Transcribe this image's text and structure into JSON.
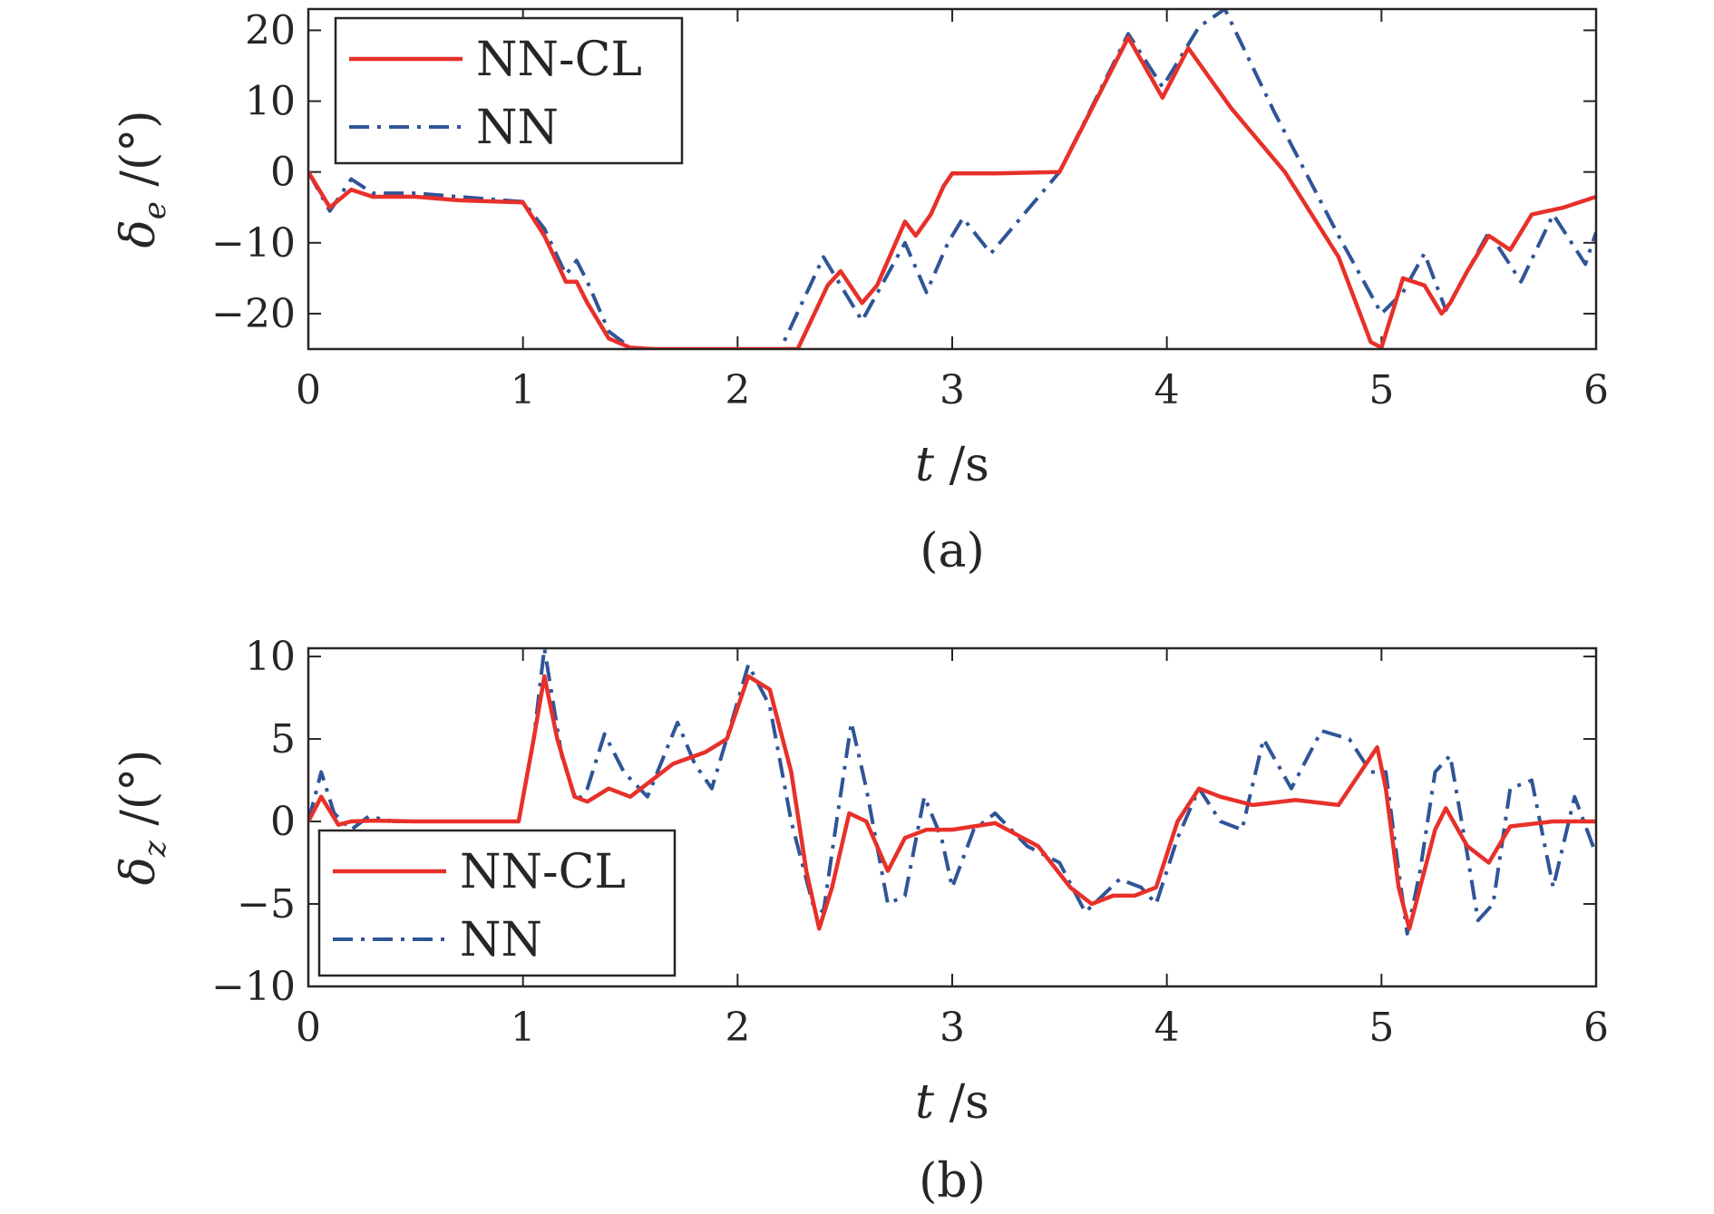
{
  "chart_data": [
    {
      "type": "line",
      "caption": "(a)",
      "ylabel_symbol": "δ",
      "ylabel_sub": "e",
      "ylabel_unit": " /(°)",
      "xlabel_symbol": "t",
      "xlabel_unit": " /s",
      "xlim": [
        0,
        6
      ],
      "ylim": [
        -25,
        23
      ],
      "xticks": [
        0,
        1,
        2,
        3,
        4,
        5,
        6
      ],
      "xtick_labels": [
        "0",
        "1",
        "2",
        "3",
        "4",
        "5",
        "6"
      ],
      "yticks": [
        -20,
        -10,
        0,
        10,
        20
      ],
      "ytick_labels": [
        "−20",
        "−10",
        "0",
        "10",
        "20"
      ],
      "legend_position": "top-left",
      "colors": {
        "NN-CL": "#e8302a",
        "NN": "#2f5597"
      },
      "series": [
        {
          "name": "NN-CL",
          "style": "solid",
          "x": [
            0,
            0.1,
            0.2,
            0.3,
            0.5,
            0.7,
            1.0,
            1.1,
            1.2,
            1.25,
            1.3,
            1.4,
            1.5,
            1.6,
            2.0,
            2.28,
            2.42,
            2.48,
            2.58,
            2.65,
            2.78,
            2.83,
            2.9,
            2.96,
            3.0,
            3.2,
            3.5,
            3.82,
            3.98,
            4.1,
            4.3,
            4.55,
            4.8,
            4.95,
            5.0,
            5.1,
            5.2,
            5.28,
            5.32,
            5.4,
            5.5,
            5.6,
            5.7,
            5.85,
            6.0
          ],
          "y": [
            0,
            -5,
            -2.5,
            -3.5,
            -3.5,
            -4,
            -4.3,
            -9,
            -15.5,
            -15.5,
            -18.5,
            -23.5,
            -24.8,
            -25,
            -25,
            -25,
            -16,
            -14,
            -18.5,
            -16,
            -7,
            -9,
            -6,
            -2,
            -0.2,
            -0.2,
            0,
            19,
            10.5,
            17.5,
            9,
            0,
            -12,
            -24,
            -24.8,
            -15,
            -16,
            -20,
            -18.5,
            -14,
            -9,
            -11,
            -6,
            -5,
            -3.5
          ]
        },
        {
          "name": "NN",
          "style": "dash-dot",
          "x": [
            0,
            0.1,
            0.2,
            0.3,
            0.5,
            0.7,
            1.0,
            1.1,
            1.2,
            1.25,
            1.3,
            1.4,
            1.5,
            1.6,
            2.0,
            2.2,
            2.4,
            2.58,
            2.78,
            2.88,
            2.98,
            3.05,
            3.18,
            3.5,
            3.82,
            3.98,
            4.15,
            4.27,
            4.5,
            4.8,
            5.0,
            5.1,
            5.2,
            5.3,
            5.5,
            5.65,
            5.8,
            5.95,
            6.0
          ],
          "y": [
            0,
            -5.5,
            -1,
            -3,
            -3,
            -3.5,
            -4.2,
            -8,
            -14.5,
            -12.5,
            -15.5,
            -22.5,
            -24.8,
            -25,
            -25,
            -25,
            -12,
            -21,
            -10,
            -17,
            -10,
            -6.5,
            -11.5,
            0,
            19.5,
            12,
            20.5,
            23,
            8.5,
            -9,
            -20,
            -17,
            -11.5,
            -19.5,
            -8.5,
            -15.5,
            -6,
            -13,
            -8.5
          ]
        }
      ]
    },
    {
      "type": "line",
      "caption": "(b)",
      "ylabel_symbol": "δ",
      "ylabel_sub": "z",
      "ylabel_unit": " /(°)",
      "xlabel_symbol": "t",
      "xlabel_unit": " /s",
      "xlim": [
        0,
        6
      ],
      "ylim": [
        -10,
        10.5
      ],
      "xticks": [
        0,
        1,
        2,
        3,
        4,
        5,
        6
      ],
      "xtick_labels": [
        "0",
        "1",
        "2",
        "3",
        "4",
        "5",
        "6"
      ],
      "yticks": [
        -10,
        -5,
        0,
        5,
        10
      ],
      "ytick_labels": [
        "−10",
        "−5",
        "0",
        "5",
        "10"
      ],
      "legend_position": "bottom-left",
      "colors": {
        "NN-CL": "#e8302a",
        "NN": "#2f5597"
      },
      "series": [
        {
          "name": "NN-CL",
          "style": "solid",
          "x": [
            0,
            0.06,
            0.14,
            0.2,
            0.3,
            0.5,
            0.8,
            0.98,
            1.05,
            1.1,
            1.16,
            1.24,
            1.3,
            1.4,
            1.5,
            1.7,
            1.85,
            1.95,
            2.05,
            2.15,
            2.25,
            2.32,
            2.38,
            2.44,
            2.52,
            2.6,
            2.7,
            2.78,
            2.88,
            3.0,
            3.2,
            3.4,
            3.55,
            3.65,
            3.75,
            3.85,
            3.95,
            4.05,
            4.15,
            4.25,
            4.4,
            4.6,
            4.8,
            4.98,
            5.02,
            5.08,
            5.13,
            5.18,
            5.25,
            5.3,
            5.4,
            5.5,
            5.6,
            5.8,
            6.0
          ],
          "y": [
            0,
            1.5,
            -0.2,
            0,
            0.05,
            0,
            0,
            0,
            5,
            8.8,
            5,
            1.5,
            1.2,
            2,
            1.5,
            3.5,
            4.2,
            5,
            8.8,
            8,
            3,
            -3,
            -6.5,
            -4,
            0.5,
            0,
            -3,
            -1,
            -0.5,
            -0.5,
            -0.1,
            -1.5,
            -4,
            -5,
            -4.5,
            -4.5,
            -4,
            0,
            2,
            1.5,
            1,
            1.3,
            1,
            4.5,
            2,
            -4,
            -6.5,
            -4,
            -0.5,
            0.8,
            -1.5,
            -2.5,
            -0.3,
            0,
            0
          ]
        },
        {
          "name": "NN",
          "style": "dash-dot",
          "x": [
            0,
            0.06,
            0.12,
            0.2,
            0.28,
            0.4,
            0.6,
            0.9,
            0.98,
            1.05,
            1.1,
            1.18,
            1.25,
            1.3,
            1.38,
            1.47,
            1.58,
            1.72,
            1.8,
            1.88,
            1.96,
            2.05,
            2.15,
            2.25,
            2.35,
            2.4,
            2.45,
            2.53,
            2.6,
            2.7,
            2.78,
            2.87,
            2.95,
            3.0,
            3.1,
            3.2,
            3.35,
            3.5,
            3.62,
            3.7,
            3.78,
            3.88,
            3.95,
            4.05,
            4.15,
            4.25,
            4.35,
            4.45,
            4.58,
            4.72,
            4.85,
            4.95,
            5.02,
            5.08,
            5.12,
            5.18,
            5.25,
            5.32,
            5.4,
            5.45,
            5.52,
            5.6,
            5.7,
            5.8,
            5.9,
            6.0
          ],
          "y": [
            0,
            3,
            0.5,
            -0.5,
            0.3,
            0,
            0,
            0,
            0,
            5,
            10.5,
            4,
            1.2,
            2,
            5.3,
            3,
            1.5,
            6,
            3.5,
            2,
            5.5,
            9.5,
            7,
            0,
            -5,
            -5.5,
            -1,
            6,
            2,
            -5,
            -4.5,
            1.5,
            -1,
            -4,
            -0.5,
            0.5,
            -1.5,
            -2.5,
            -5.5,
            -4.5,
            -3.5,
            -4,
            -5,
            -1,
            2,
            0,
            -0.5,
            5,
            2,
            5.5,
            5,
            3,
            3,
            -3,
            -6.8,
            -3,
            3,
            4,
            -2,
            -6,
            -5,
            2,
            2.5,
            -4,
            1.5,
            -2
          ]
        }
      ]
    }
  ]
}
